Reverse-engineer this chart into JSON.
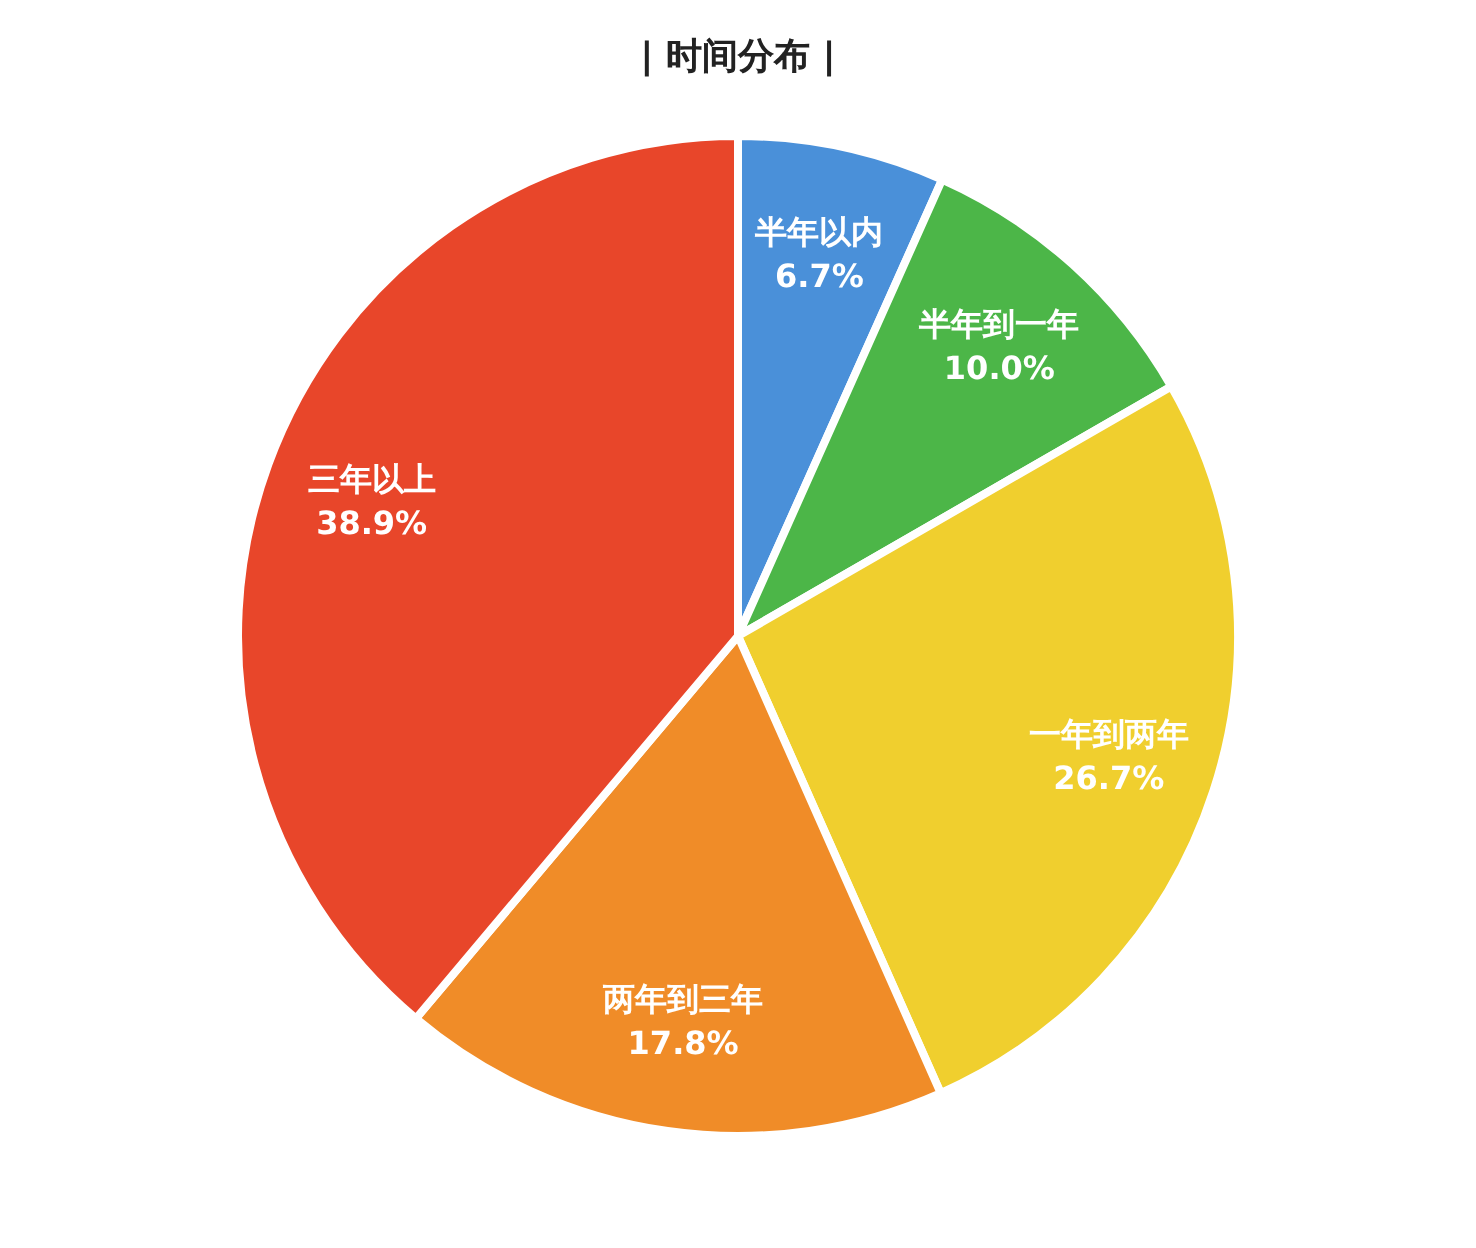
{
  "chart_data": {
    "type": "pie",
    "title": "| 时间分布 |",
    "categories": [
      "半年以内",
      "半年到一年",
      "一年到两年",
      "两年到三年",
      "三年以上"
    ],
    "values": [
      6.7,
      10.0,
      26.7,
      17.8,
      38.9
    ],
    "value_labels": [
      "6.7%",
      "10.0%",
      "26.7%",
      "17.8%",
      "38.9%"
    ],
    "colors": [
      "#4a90d9",
      "#4cb648",
      "#f0cf2e",
      "#f08c28",
      "#e8462a"
    ],
    "legend": false
  }
}
